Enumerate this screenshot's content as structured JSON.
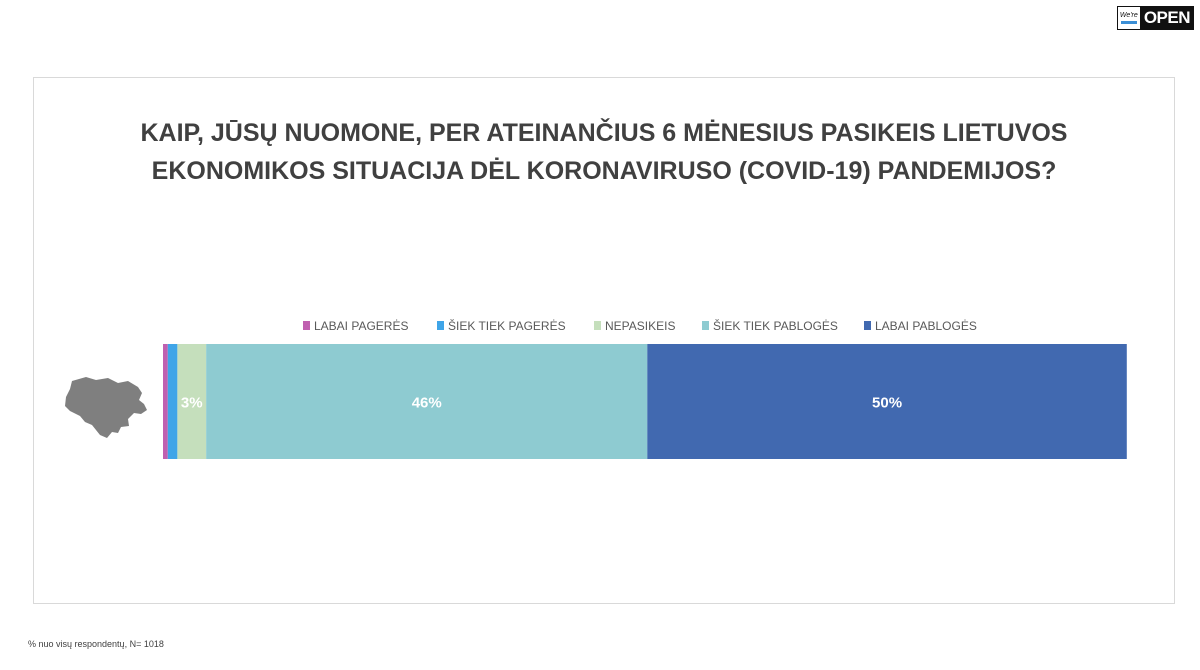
{
  "logo": {
    "mark_text": "We're",
    "brand_text": "OPEN"
  },
  "footnote": "% nuo visų respondentų, N= 1018",
  "chart_data": {
    "type": "bar",
    "orientation": "horizontal",
    "stacked": true,
    "title": "KAIP, JŪSŲ NUOMONE, PER ATEINANČIUS 6 MĖNESIUS PASIKEIS LIETUVOS\nEKONOMIKOS SITUACIJA DĖL KORONAVIRUSO (COVID-19) PANDEMIJOS?",
    "xlabel": "",
    "ylabel": "",
    "categories": [
      ""
    ],
    "xlim": [
      0,
      100
    ],
    "grid": false,
    "legend_position": "top",
    "series": [
      {
        "name": "LABAI PAGERĖS",
        "values": [
          0.5
        ],
        "label": "",
        "color": "#c060b0",
        "label_color": "#ffffff"
      },
      {
        "name": "ŠIEK TIEK PAGERĖS",
        "values": [
          1
        ],
        "label": "",
        "color": "#3fa5e8",
        "label_color": "#ffffff"
      },
      {
        "name": "NEPASIKEIS",
        "values": [
          3
        ],
        "label": "3%",
        "color": "#c5dfbc",
        "label_color": "#ffffff"
      },
      {
        "name": "ŠIEK TIEK PABLOGĖS",
        "values": [
          46
        ],
        "label": "46%",
        "color": "#8ecbd1",
        "label_color": "#ffffff"
      },
      {
        "name": "LABAI PABLOGĖS",
        "values": [
          50
        ],
        "label": "50%",
        "color": "#4169b0",
        "label_color": "#ffffff"
      }
    ],
    "map_icon": "lithuania-map-icon",
    "map_color": "#7f7f7f"
  }
}
